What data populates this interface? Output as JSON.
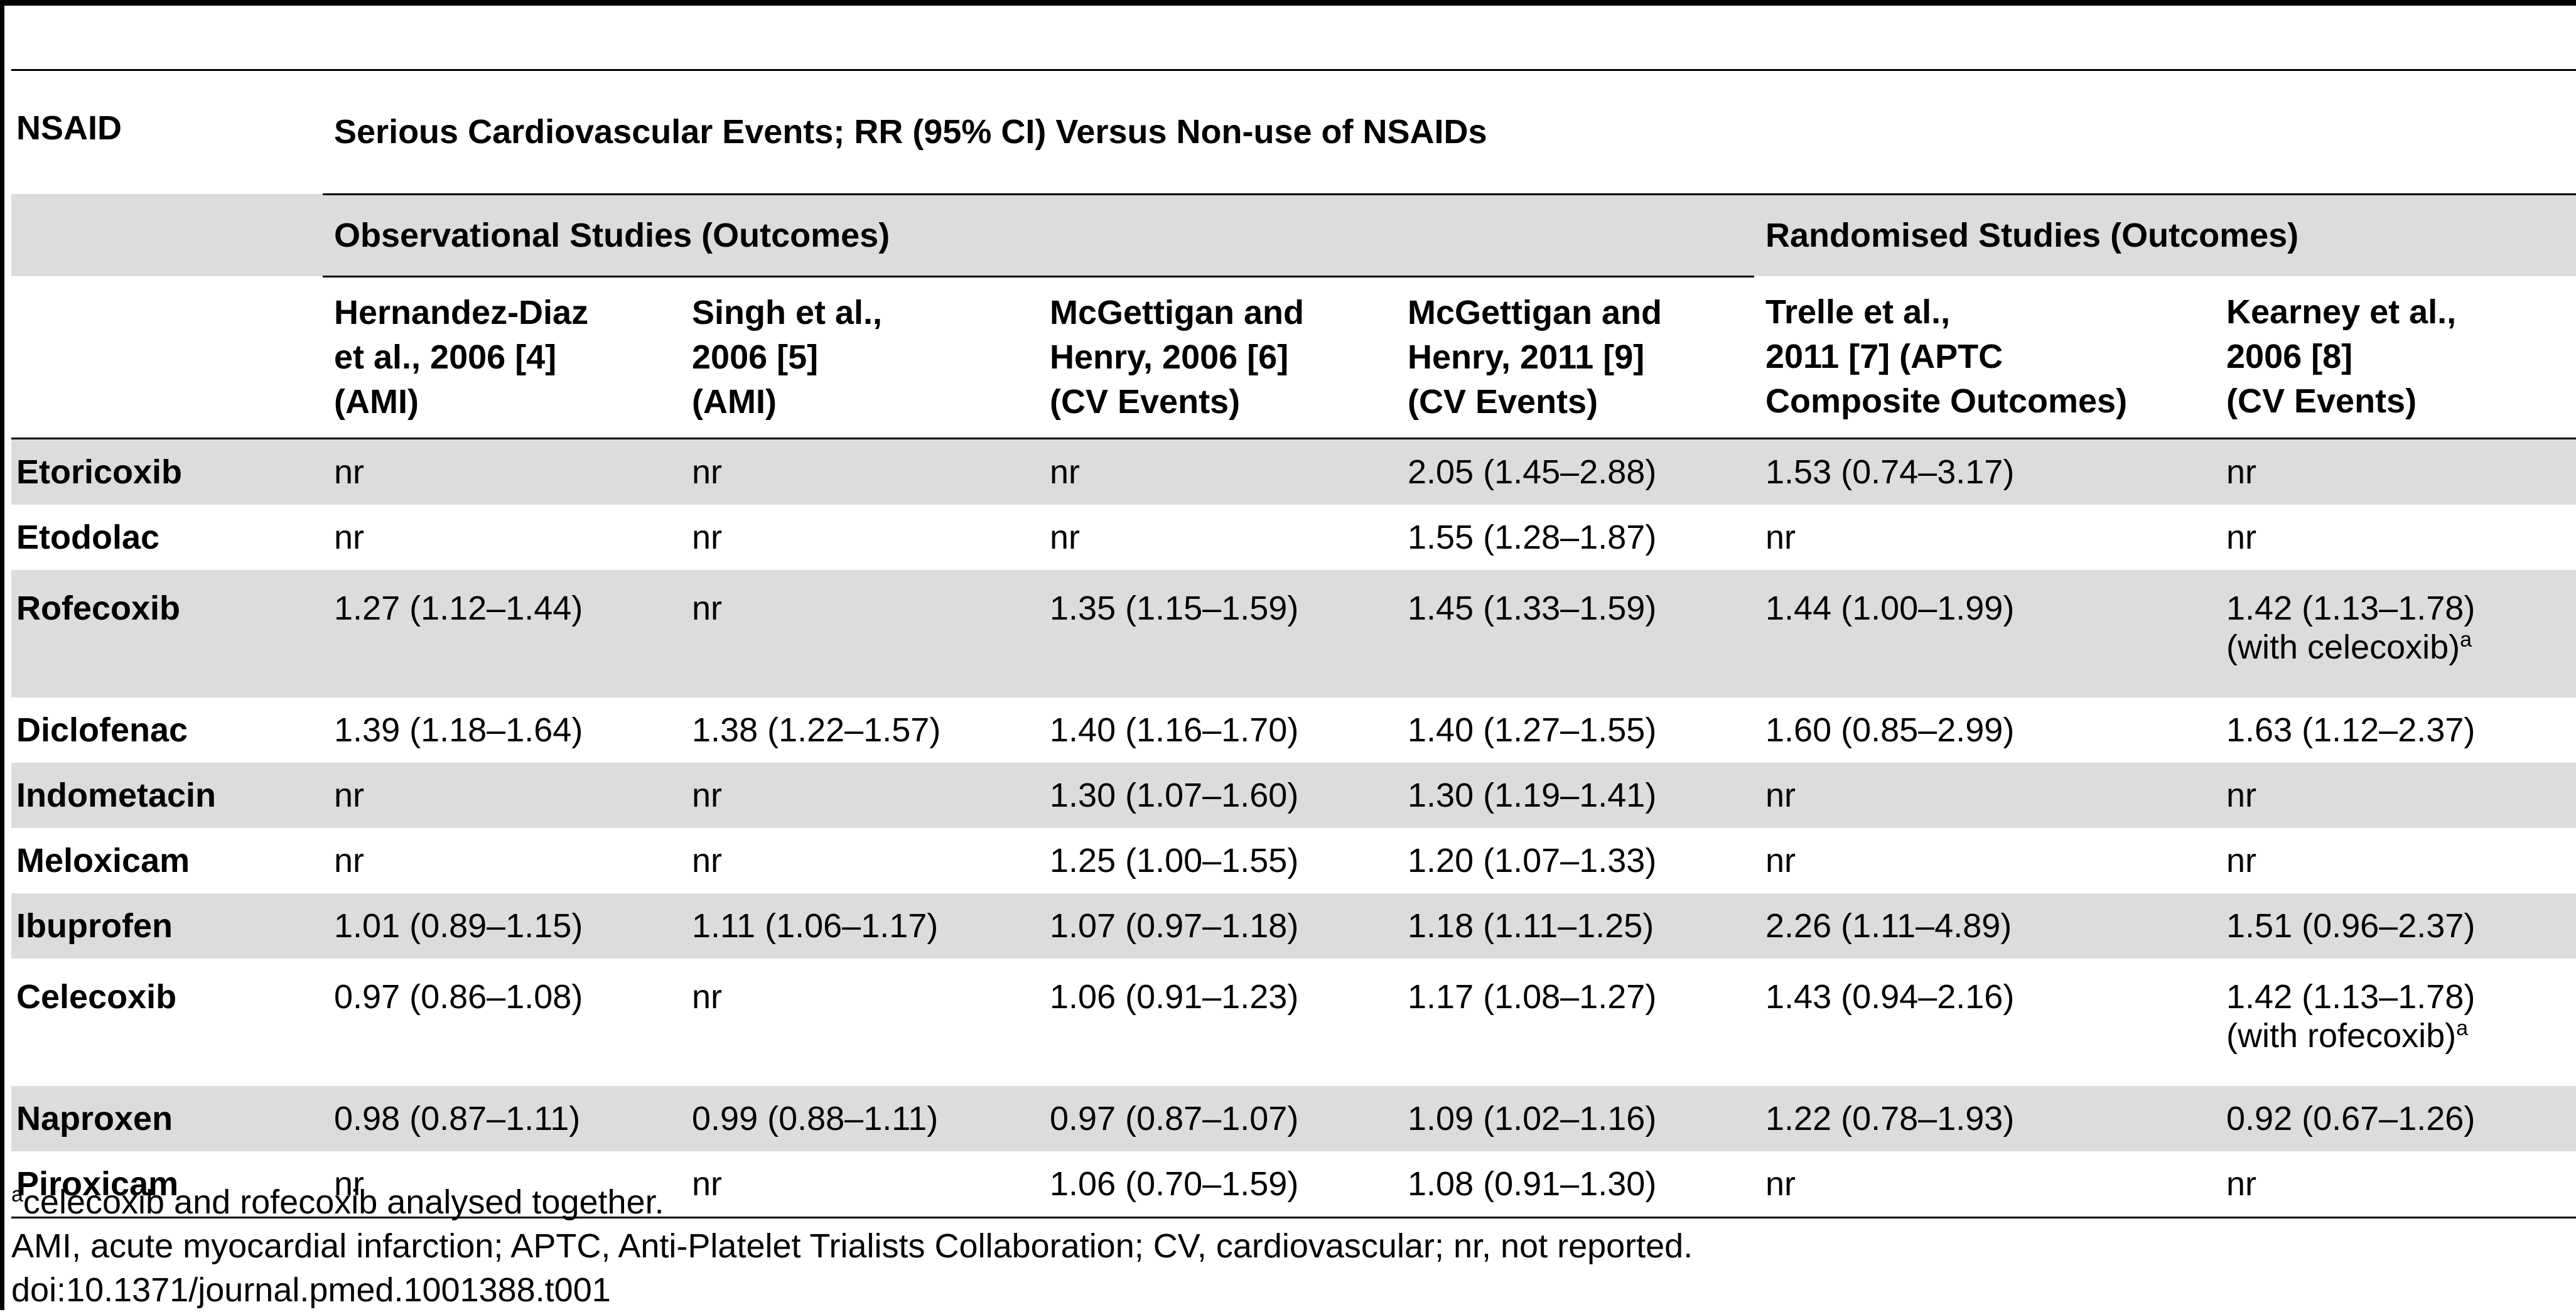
{
  "table": {
    "nsaid_header": "NSAID",
    "main_header": "Serious Cardiovascular Events; RR (95% CI) Versus Non-use of NSAIDs",
    "group_observational": "Observational Studies (Outcomes)",
    "group_randomised": "Randomised Studies (Outcomes)",
    "columns": [
      [
        "Hernandez-Diaz",
        "et al., 2006 [4]",
        "(AMI)"
      ],
      [
        "Singh et al.,",
        "2006 [5]",
        "(AMI)"
      ],
      [
        "McGettigan and",
        "Henry, 2006 [6]",
        "(CV Events)"
      ],
      [
        "McGettigan and",
        "Henry, 2011 [9]",
        "(CV Events)"
      ],
      [
        "Trelle et al.,",
        "2011 [7] (APTC",
        "Composite Outcomes)"
      ],
      [
        "Kearney et al.,",
        "2006 [8]",
        "(CV Events)"
      ]
    ],
    "rows": [
      {
        "name": "Etoricoxib",
        "values": [
          "nr",
          "nr",
          "nr",
          "2.05 (1.45–2.88)",
          "1.53 (0.74–3.17)",
          "nr"
        ]
      },
      {
        "name": "Etodolac",
        "values": [
          "nr",
          "nr",
          "nr",
          "1.55 (1.28–1.87)",
          "nr",
          "nr"
        ]
      },
      {
        "name": "Rofecoxib",
        "values": [
          "1.27 (1.12–1.44)",
          "nr",
          "1.35 (1.15–1.59)",
          "1.45 (1.33–1.59)",
          "1.44 (1.00–1.99)",
          "1.42 (1.13–1.78)"
        ],
        "note": "(with celecoxib)",
        "note_sup": "a"
      },
      {
        "name": "Diclofenac",
        "values": [
          "1.39 (1.18–1.64)",
          "1.38 (1.22–1.57)",
          "1.40 (1.16–1.70)",
          "1.40 (1.27–1.55)",
          "1.60 (0.85–2.99)",
          "1.63 (1.12–2.37)"
        ]
      },
      {
        "name": "Indometacin",
        "values": [
          "nr",
          "nr",
          "1.30 (1.07–1.60)",
          "1.30 (1.19–1.41)",
          "nr",
          "nr"
        ]
      },
      {
        "name": "Meloxicam",
        "values": [
          "nr",
          "nr",
          "1.25 (1.00–1.55)",
          "1.20 (1.07–1.33)",
          "nr",
          "nr"
        ]
      },
      {
        "name": "Ibuprofen",
        "values": [
          "1.01 (0.89–1.15)",
          "1.11 (1.06–1.17)",
          "1.07 (0.97–1.18)",
          "1.18 (1.11–1.25)",
          "2.26 (1.11–4.89)",
          "1.51 (0.96–2.37)"
        ]
      },
      {
        "name": "Celecoxib",
        "values": [
          "0.97 (0.86–1.08)",
          "nr",
          "1.06 (0.91–1.23)",
          "1.17 (1.08–1.27)",
          "1.43 (0.94–2.16)",
          "1.42 (1.13–1.78)"
        ],
        "note": "(with rofecoxib)",
        "note_sup": "a"
      },
      {
        "name": "Naproxen",
        "values": [
          "0.98 (0.87–1.11)",
          "0.99 (0.88–1.11)",
          "0.97 (0.87–1.07)",
          "1.09 (1.02–1.16)",
          "1.22 (0.78–1.93)",
          "0.92 (0.67–1.26)"
        ]
      },
      {
        "name": "Piroxicam",
        "values": [
          "nr",
          "nr",
          "1.06 (0.70–1.59)",
          "1.08 (0.91–1.30)",
          "nr",
          "nr"
        ]
      }
    ]
  },
  "footnotes": {
    "a_sup": "a",
    "a_text": "celecoxib and rofecoxib analysed together.",
    "abbreviations": "AMI, acute myocardial infarction; APTC, Anti-Platelet Trialists Collaboration; CV, cardiovascular; nr, not reported.",
    "doi": "doi:10.1371/journal.pmed.1001388.t001"
  }
}
